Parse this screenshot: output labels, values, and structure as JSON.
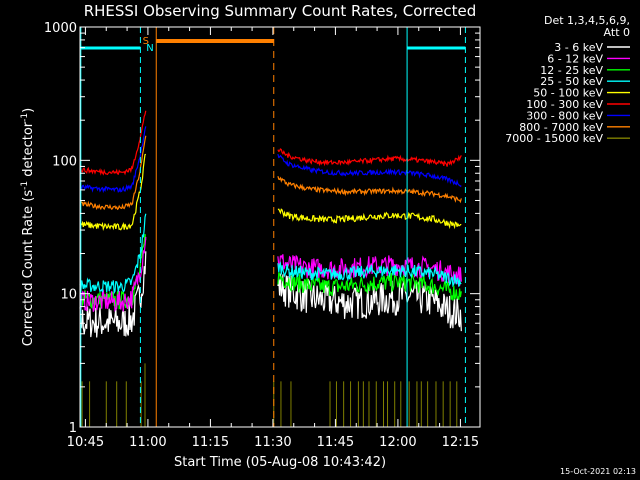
{
  "chart_data": {
    "type": "line",
    "title": "RHESSI Observing Summary Count Rates, Corrected",
    "xlabel": "Start Time (05-Aug-08 10:43:42)",
    "ylabel_main": "Corrected Count Rate (s",
    "ylabel_sup1": "-1",
    "ylabel_mid": " detector",
    "ylabel_sup2": "-1",
    "ylabel_end": ")",
    "y_scale": "log",
    "ylim": [
      1,
      1000
    ],
    "xlim_minutes": [
      0,
      96
    ],
    "x_tick_labels": [
      "10:45",
      "11:00",
      "11:15",
      "11:30",
      "11:45",
      "12:00",
      "12:15"
    ],
    "x_tick_minutes": [
      1.3,
      16.3,
      31.3,
      46.3,
      61.3,
      76.3,
      91.3
    ],
    "y_tick_labels": [
      "1",
      "10",
      "100",
      "1000"
    ],
    "y_tick_values": [
      1,
      10,
      100,
      1000
    ],
    "legend_header": [
      "Det 1,3,4,5,6,9,",
      "Att 0"
    ],
    "legend_position": "right",
    "markers": [
      {
        "text": "S",
        "color": "#ff8000"
      },
      {
        "text": "N",
        "color": "#00ffff"
      }
    ],
    "timestamp": "15-Oct-2021 02:13",
    "series": [
      {
        "name": "3 - 6 keV",
        "color": "#ffffff",
        "seg1": [
          [
            0,
            6.2
          ],
          [
            10,
            6.0
          ],
          [
            12.5,
            6.4
          ],
          [
            14.5,
            10
          ],
          [
            15.8,
            18
          ]
        ],
        "seg2": [
          [
            47.5,
            11.5
          ],
          [
            50,
            10.5
          ],
          [
            55,
            9.3
          ],
          [
            60,
            8.8
          ],
          [
            65,
            8.5
          ],
          [
            70,
            8.8
          ],
          [
            75,
            9.3
          ],
          [
            80,
            9.5
          ],
          [
            85,
            8.7
          ],
          [
            88,
            7.6
          ],
          [
            91.5,
            7.0
          ]
        ],
        "noise": 0.13
      },
      {
        "name": "6 - 12 keV",
        "color": "#ff00ff",
        "seg1": [
          [
            0,
            8.8
          ],
          [
            10,
            8.7
          ],
          [
            12.5,
            9.3
          ],
          [
            14.5,
            15
          ],
          [
            15.8,
            28
          ]
        ],
        "seg2": [
          [
            47.5,
            18
          ],
          [
            50,
            16.5
          ],
          [
            55,
            15.6
          ],
          [
            60,
            15.3
          ],
          [
            65,
            15.6
          ],
          [
            70,
            16.1
          ],
          [
            75,
            16.4
          ],
          [
            80,
            16.1
          ],
          [
            85,
            15.4
          ],
          [
            88,
            14.4
          ],
          [
            91.5,
            13.5
          ]
        ],
        "noise": 0.08
      },
      {
        "name": "12 - 25 keV",
        "color": "#00ff00",
        "seg1": [
          [
            0,
            9.2
          ],
          [
            10,
            8.9
          ],
          [
            12.5,
            9.4
          ],
          [
            14.5,
            15
          ],
          [
            15.8,
            28
          ]
        ],
        "seg2": [
          [
            47.5,
            13.5
          ],
          [
            50,
            12.5
          ],
          [
            55,
            11.5
          ],
          [
            60,
            11.2
          ],
          [
            65,
            11.5
          ],
          [
            70,
            12.0
          ],
          [
            75,
            12.2
          ],
          [
            80,
            12.0
          ],
          [
            85,
            11.4
          ],
          [
            88,
            10.6
          ],
          [
            91.5,
            10.0
          ]
        ],
        "noise": 0.07
      },
      {
        "name": "25 - 50 keV",
        "color": "#00ffff",
        "seg1": [
          [
            0,
            11.5
          ],
          [
            10,
            11.3
          ],
          [
            12.5,
            12.2
          ],
          [
            14.5,
            20
          ],
          [
            15.8,
            38
          ]
        ],
        "seg2": [
          [
            47.5,
            16
          ],
          [
            50,
            14.8
          ],
          [
            55,
            14.2
          ],
          [
            60,
            14.0
          ],
          [
            65,
            14.2
          ],
          [
            70,
            14.7
          ],
          [
            75,
            15.0
          ],
          [
            80,
            14.7
          ],
          [
            85,
            14.0
          ],
          [
            88,
            13.2
          ],
          [
            91.5,
            12.5
          ]
        ],
        "noise": 0.05
      },
      {
        "name": "50 - 100 keV",
        "color": "#ffff00",
        "seg1": [
          [
            0,
            33
          ],
          [
            5,
            32
          ],
          [
            10,
            31.5
          ],
          [
            12.5,
            33
          ],
          [
            14.5,
            60
          ],
          [
            15.8,
            115
          ]
        ],
        "seg2": [
          [
            47.5,
            43
          ],
          [
            50,
            38.5
          ],
          [
            55,
            36.5
          ],
          [
            60,
            35.8
          ],
          [
            65,
            36.5
          ],
          [
            70,
            38.0
          ],
          [
            75,
            38.7
          ],
          [
            80,
            38.0
          ],
          [
            85,
            36.2
          ],
          [
            88,
            34.0
          ],
          [
            91.5,
            32.0
          ]
        ],
        "noise": 0.025
      },
      {
        "name": "100 - 300 keV",
        "color": "#ff0000",
        "seg1": [
          [
            0,
            85
          ],
          [
            5,
            82
          ],
          [
            10,
            81
          ],
          [
            12.5,
            86
          ],
          [
            14.5,
            150
          ],
          [
            15.8,
            240
          ]
        ],
        "seg2": [
          [
            47.5,
            120
          ],
          [
            50,
            108
          ],
          [
            55,
            99
          ],
          [
            60,
            96
          ],
          [
            65,
            97
          ],
          [
            70,
            100
          ],
          [
            75,
            103
          ],
          [
            80,
            101
          ],
          [
            85,
            97
          ],
          [
            88,
            93
          ],
          [
            91.5,
            105
          ]
        ],
        "noise": 0.018
      },
      {
        "name": "300 - 800 keV",
        "color": "#0000ff",
        "seg1": [
          [
            0,
            63
          ],
          [
            5,
            61
          ],
          [
            10,
            60
          ],
          [
            12.5,
            64
          ],
          [
            14.5,
            110
          ],
          [
            15.8,
            185
          ]
        ],
        "seg2": [
          [
            47.5,
            108
          ],
          [
            50,
            94
          ],
          [
            55,
            85
          ],
          [
            60,
            81
          ],
          [
            65,
            80
          ],
          [
            70,
            81
          ],
          [
            75,
            82
          ],
          [
            80,
            80
          ],
          [
            85,
            76
          ],
          [
            88,
            72
          ],
          [
            91.5,
            66
          ]
        ],
        "noise": 0.018
      },
      {
        "name": "800 - 7000 keV",
        "color": "#ff8000",
        "seg1": [
          [
            0,
            47
          ],
          [
            5,
            45
          ],
          [
            10,
            44
          ],
          [
            12.5,
            47
          ],
          [
            14.5,
            85
          ],
          [
            15.8,
            155
          ]
        ],
        "seg2": [
          [
            47.5,
            75
          ],
          [
            50,
            66
          ],
          [
            55,
            61
          ],
          [
            60,
            59
          ],
          [
            65,
            58
          ],
          [
            70,
            58.5
          ],
          [
            75,
            59
          ],
          [
            80,
            58
          ],
          [
            85,
            56
          ],
          [
            88,
            54
          ],
          [
            91.5,
            50
          ]
        ],
        "noise": 0.018
      },
      {
        "name": "7000 - 15000 keV",
        "color": "#808000",
        "seg1": [
          [
            0,
            2.2
          ],
          [
            14.5,
            2.2
          ],
          [
            15.8,
            3.0
          ]
        ],
        "seg2": [
          [
            47.5,
            2.2
          ],
          [
            91.5,
            2.2
          ]
        ],
        "noise": 0
      }
    ]
  }
}
